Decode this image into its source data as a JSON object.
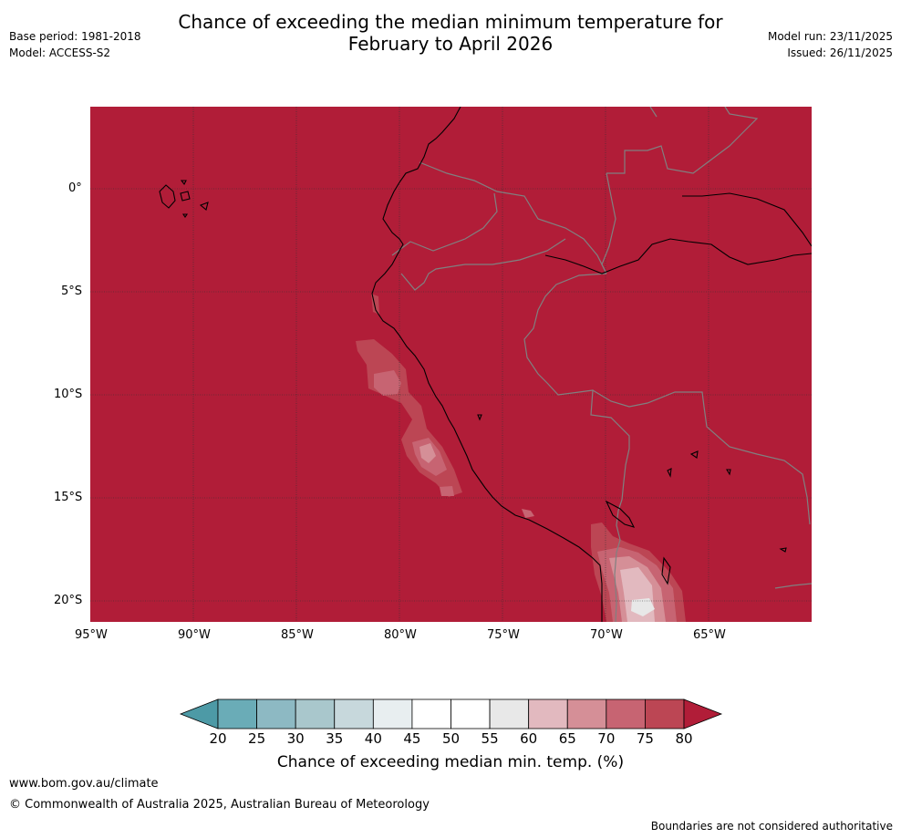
{
  "title": {
    "line1": "Chance of exceeding the median minimum temperature for",
    "line2": "February to April 2026"
  },
  "left_meta": {
    "base_period": "Base period: 1981-2018",
    "model": "Model: ACCESS-S2"
  },
  "right_meta": {
    "model_run": "Model run: 23/11/2025",
    "issued": "Issued: 26/11/2025"
  },
  "map": {
    "lat_labels": [
      "0°",
      "5°S",
      "10°S",
      "15°S",
      "20°S"
    ],
    "lon_labels": [
      "95°W",
      "90°W",
      "85°W",
      "80°W",
      "75°W",
      "70°W",
      "65°W"
    ],
    "background_category": "above 80%",
    "colors": {
      "land_sea_fill": "#b11d38",
      "coastline": "#000000",
      "borders": "#808080",
      "gridline": "#333333"
    }
  },
  "colorbar": {
    "ticks": [
      "20",
      "25",
      "30",
      "35",
      "40",
      "45",
      "50",
      "55",
      "60",
      "65",
      "70",
      "75",
      "80"
    ],
    "colors": [
      "#6aacb7",
      "#8db9c3",
      "#a9c7cc",
      "#c7d8dc",
      "#e8eef0",
      "#ffffff",
      "#ffffff",
      "#e8e8e8",
      "#e2b9bf",
      "#d58f97",
      "#c76472",
      "#bc4654"
    ],
    "under_color": "#4d9aa6",
    "over_color": "#b11d38",
    "title": "Chance of exceeding median min. temp. (%)"
  },
  "footer": {
    "url": "www.bom.gov.au/climate",
    "copyright": "© Commonwealth of Australia 2025, Australian Bureau of Meteorology",
    "disclaimer": "Boundaries are not considered authoritative"
  }
}
